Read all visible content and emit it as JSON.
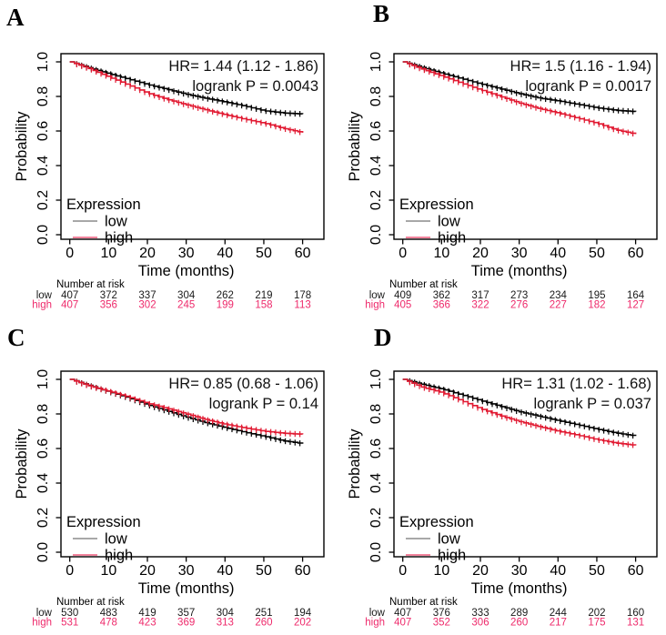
{
  "colors": {
    "curve_low": "#000000",
    "curve_high": "#e11931",
    "legend_swatch_low": "#9b9b9b",
    "legend_swatch_high": "#f0738f",
    "risk_low_text": "#1a1a1a",
    "risk_high_text": "#ee2a6b",
    "axis": "#000000",
    "annotation_text": "#111111",
    "background": "#ffffff"
  },
  "chart_data": [
    {
      "type": "line",
      "panel_label": "A",
      "annotations": [
        "HR= 1.44 (1.12 - 1.86)",
        "logrank P = 0.0043"
      ],
      "xlabel": "Time (months)",
      "ylabel": "Probability",
      "xlim": [
        0,
        60
      ],
      "ylim": [
        0.0,
        1.0
      ],
      "xticks": [
        0,
        10,
        20,
        30,
        40,
        50,
        60
      ],
      "yticks": [
        "0.0",
        "0.2",
        "0.4",
        "0.6",
        "0.8",
        "1.0"
      ],
      "grid": false,
      "legend": {
        "title": "Expression",
        "position": "bottom-left",
        "items": [
          "low",
          "high"
        ]
      },
      "series": [
        {
          "name": "low",
          "color": "#000000",
          "x": [
            0,
            5,
            10,
            15,
            20,
            25,
            30,
            35,
            40,
            45,
            50,
            55,
            60
          ],
          "y": [
            1.0,
            0.965,
            0.932,
            0.9,
            0.868,
            0.84,
            0.812,
            0.789,
            0.768,
            0.744,
            0.717,
            0.704,
            0.698
          ]
        },
        {
          "name": "high",
          "color": "#e11931",
          "x": [
            0,
            5,
            10,
            15,
            20,
            25,
            30,
            35,
            40,
            45,
            50,
            55,
            60
          ],
          "y": [
            1.0,
            0.96,
            0.913,
            0.866,
            0.818,
            0.782,
            0.751,
            0.722,
            0.694,
            0.668,
            0.645,
            0.614,
            0.59
          ]
        }
      ],
      "risk_table": {
        "header": "Number at risk",
        "timepoints": [
          0,
          10,
          20,
          30,
          40,
          50,
          60
        ],
        "rows": [
          {
            "label": "low",
            "values": [
              407,
              372,
              337,
              304,
              262,
              219,
              178
            ]
          },
          {
            "label": "high",
            "values": [
              407,
              356,
              302,
              245,
              199,
              158,
              113
            ]
          }
        ]
      }
    },
    {
      "type": "line",
      "panel_label": "B",
      "annotations": [
        "HR= 1.5 (1.16 - 1.94)",
        "logrank P = 0.0017"
      ],
      "xlabel": "Time (months)",
      "ylabel": "Probability",
      "xlim": [
        0,
        60
      ],
      "ylim": [
        0.0,
        1.0
      ],
      "xticks": [
        0,
        10,
        20,
        30,
        40,
        50,
        60
      ],
      "yticks": [
        "0.0",
        "0.2",
        "0.4",
        "0.6",
        "0.8",
        "1.0"
      ],
      "grid": false,
      "legend": {
        "title": "Expression",
        "position": "bottom-left",
        "items": [
          "low",
          "high"
        ]
      },
      "series": [
        {
          "name": "low",
          "color": "#000000",
          "x": [
            0,
            5,
            10,
            15,
            20,
            25,
            30,
            35,
            40,
            45,
            50,
            55,
            60
          ],
          "y": [
            1.0,
            0.967,
            0.934,
            0.903,
            0.872,
            0.844,
            0.815,
            0.791,
            0.774,
            0.754,
            0.734,
            0.719,
            0.712
          ]
        },
        {
          "name": "high",
          "color": "#e11931",
          "x": [
            0,
            5,
            10,
            15,
            20,
            25,
            30,
            35,
            40,
            45,
            50,
            55,
            60
          ],
          "y": [
            1.0,
            0.957,
            0.918,
            0.877,
            0.837,
            0.799,
            0.761,
            0.73,
            0.704,
            0.674,
            0.644,
            0.605,
            0.582
          ]
        }
      ],
      "risk_table": {
        "header": "Number at risk",
        "timepoints": [
          0,
          10,
          20,
          30,
          40,
          50,
          60
        ],
        "rows": [
          {
            "label": "low",
            "values": [
              409,
              362,
              317,
              273,
              234,
              195,
              164
            ]
          },
          {
            "label": "high",
            "values": [
              405,
              366,
              322,
              276,
              227,
              182,
              127
            ]
          }
        ]
      }
    },
    {
      "type": "line",
      "panel_label": "C",
      "annotations": [
        "HR= 0.85 (0.68 - 1.06)",
        "logrank P = 0.14"
      ],
      "xlabel": "Time (months)",
      "ylabel": "Probability",
      "xlim": [
        0,
        60
      ],
      "ylim": [
        0.0,
        1.0
      ],
      "xticks": [
        0,
        10,
        20,
        30,
        40,
        50,
        60
      ],
      "yticks": [
        "0.0",
        "0.2",
        "0.4",
        "0.6",
        "0.8",
        "1.0"
      ],
      "grid": false,
      "legend": {
        "title": "Expression",
        "position": "bottom-left",
        "items": [
          "low",
          "high"
        ]
      },
      "series": [
        {
          "name": "low",
          "color": "#000000",
          "x": [
            0,
            5,
            10,
            15,
            20,
            25,
            30,
            35,
            40,
            45,
            50,
            55,
            60
          ],
          "y": [
            1.0,
            0.964,
            0.929,
            0.893,
            0.852,
            0.816,
            0.781,
            0.749,
            0.721,
            0.694,
            0.67,
            0.644,
            0.628
          ]
        },
        {
          "name": "high",
          "color": "#e11931",
          "x": [
            0,
            5,
            10,
            15,
            20,
            25,
            30,
            35,
            40,
            45,
            50,
            55,
            60
          ],
          "y": [
            1.0,
            0.961,
            0.931,
            0.898,
            0.861,
            0.831,
            0.799,
            0.767,
            0.74,
            0.719,
            0.7,
            0.688,
            0.682
          ]
        }
      ],
      "risk_table": {
        "header": "Number at risk",
        "timepoints": [
          0,
          10,
          20,
          30,
          40,
          50,
          60
        ],
        "rows": [
          {
            "label": "low",
            "values": [
              530,
              483,
              419,
              357,
              304,
              251,
              194
            ]
          },
          {
            "label": "high",
            "values": [
              531,
              478,
              423,
              369,
              313,
              260,
              202
            ]
          }
        ]
      }
    },
    {
      "type": "line",
      "panel_label": "D",
      "annotations": [
        "HR= 1.31 (1.02 - 1.68)",
        "logrank P = 0.037"
      ],
      "xlabel": "Time (months)",
      "ylabel": "Probability",
      "xlim": [
        0,
        60
      ],
      "ylim": [
        0.0,
        1.0
      ],
      "xticks": [
        0,
        10,
        20,
        30,
        40,
        50,
        60
      ],
      "yticks": [
        "0.0",
        "0.2",
        "0.4",
        "0.6",
        "0.8",
        "1.0"
      ],
      "grid": false,
      "legend": {
        "title": "Expression",
        "position": "bottom-left",
        "items": [
          "low",
          "high"
        ]
      },
      "series": [
        {
          "name": "low",
          "color": "#000000",
          "x": [
            0,
            5,
            10,
            15,
            20,
            25,
            30,
            35,
            40,
            45,
            50,
            55,
            60
          ],
          "y": [
            1.0,
            0.971,
            0.944,
            0.911,
            0.877,
            0.844,
            0.812,
            0.787,
            0.761,
            0.737,
            0.711,
            0.689,
            0.672
          ]
        },
        {
          "name": "high",
          "color": "#e11931",
          "x": [
            0,
            5,
            10,
            15,
            20,
            25,
            30,
            35,
            40,
            45,
            50,
            55,
            60
          ],
          "y": [
            1.0,
            0.954,
            0.924,
            0.877,
            0.829,
            0.789,
            0.755,
            0.727,
            0.7,
            0.677,
            0.651,
            0.631,
            0.618
          ]
        }
      ],
      "risk_table": {
        "header": "Number at risk",
        "timepoints": [
          0,
          10,
          20,
          30,
          40,
          50,
          60
        ],
        "rows": [
          {
            "label": "low",
            "values": [
              407,
              376,
              333,
              289,
              244,
              202,
              160
            ]
          },
          {
            "label": "high",
            "values": [
              407,
              352,
              306,
              260,
              217,
              175,
              131
            ]
          }
        ]
      }
    }
  ]
}
